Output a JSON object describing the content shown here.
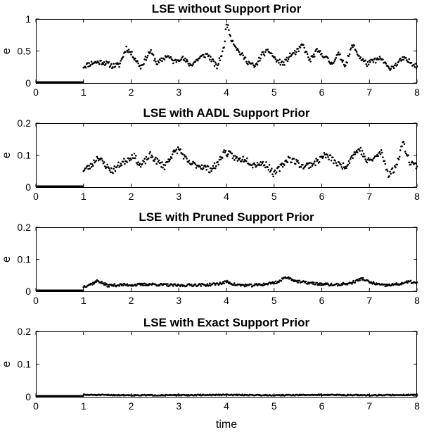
{
  "chart_data": [
    {
      "type": "scatter",
      "title": "LSE without Support Prior",
      "ylabel": "e",
      "xlabel": "",
      "xlim": [
        0,
        8
      ],
      "ylim": [
        0,
        1
      ],
      "x_ticks": [
        "0",
        "1",
        "2",
        "3",
        "4",
        "5",
        "6",
        "7",
        "8"
      ],
      "y_ticks": [
        "0",
        "0.5",
        "1"
      ],
      "grid": false,
      "zero_segment": {
        "x_start": 0,
        "x_end": 1,
        "value": 0
      },
      "anchors": [
        [
          1.0,
          0.26
        ],
        [
          1.2,
          0.32
        ],
        [
          1.4,
          0.33
        ],
        [
          1.6,
          0.27
        ],
        [
          1.75,
          0.28
        ],
        [
          1.9,
          0.55
        ],
        [
          2.05,
          0.42
        ],
        [
          2.2,
          0.25
        ],
        [
          2.4,
          0.5
        ],
        [
          2.55,
          0.3
        ],
        [
          2.75,
          0.43
        ],
        [
          2.9,
          0.33
        ],
        [
          3.05,
          0.4
        ],
        [
          3.25,
          0.28
        ],
        [
          3.45,
          0.4
        ],
        [
          3.6,
          0.45
        ],
        [
          3.8,
          0.25
        ],
        [
          3.95,
          0.55
        ],
        [
          4.0,
          0.95
        ],
        [
          4.1,
          0.7
        ],
        [
          4.25,
          0.5
        ],
        [
          4.45,
          0.33
        ],
        [
          4.6,
          0.25
        ],
        [
          4.75,
          0.45
        ],
        [
          4.9,
          0.5
        ],
        [
          5.05,
          0.35
        ],
        [
          5.2,
          0.3
        ],
        [
          5.35,
          0.44
        ],
        [
          5.5,
          0.5
        ],
        [
          5.6,
          0.6
        ],
        [
          5.75,
          0.35
        ],
        [
          5.9,
          0.5
        ],
        [
          6.05,
          0.43
        ],
        [
          6.2,
          0.3
        ],
        [
          6.35,
          0.45
        ],
        [
          6.5,
          0.28
        ],
        [
          6.65,
          0.6
        ],
        [
          6.8,
          0.4
        ],
        [
          6.95,
          0.3
        ],
        [
          7.1,
          0.35
        ],
        [
          7.25,
          0.38
        ],
        [
          7.4,
          0.23
        ],
        [
          7.55,
          0.28
        ],
        [
          7.7,
          0.38
        ],
        [
          7.85,
          0.33
        ],
        [
          8.0,
          0.27
        ]
      ],
      "noise": 0.04,
      "points_per_unit": 60,
      "seed": 11
    },
    {
      "type": "scatter",
      "title": "LSE with AADL Support Prior",
      "ylabel": "e",
      "xlabel": "",
      "xlim": [
        0,
        8
      ],
      "ylim": [
        0,
        0.2
      ],
      "x_ticks": [
        "0",
        "1",
        "2",
        "3",
        "4",
        "5",
        "6",
        "7",
        "8"
      ],
      "y_ticks": [
        "0",
        "0.1",
        "0.2"
      ],
      "grid": false,
      "zero_segment": {
        "x_start": 0,
        "x_end": 1,
        "value": 0
      },
      "anchors": [
        [
          1.0,
          0.055
        ],
        [
          1.15,
          0.065
        ],
        [
          1.3,
          0.095
        ],
        [
          1.45,
          0.07
        ],
        [
          1.6,
          0.05
        ],
        [
          1.75,
          0.07
        ],
        [
          1.9,
          0.085
        ],
        [
          2.05,
          0.1
        ],
        [
          2.2,
          0.065
        ],
        [
          2.4,
          0.1
        ],
        [
          2.55,
          0.08
        ],
        [
          2.7,
          0.065
        ],
        [
          2.85,
          0.1
        ],
        [
          3.0,
          0.12
        ],
        [
          3.2,
          0.075
        ],
        [
          3.35,
          0.07
        ],
        [
          3.5,
          0.065
        ],
        [
          3.65,
          0.055
        ],
        [
          3.8,
          0.07
        ],
        [
          3.95,
          0.11
        ],
        [
          4.1,
          0.1
        ],
        [
          4.25,
          0.085
        ],
        [
          4.4,
          0.09
        ],
        [
          4.55,
          0.07
        ],
        [
          4.7,
          0.075
        ],
        [
          4.85,
          0.07
        ],
        [
          5.0,
          0.04
        ],
        [
          5.15,
          0.065
        ],
        [
          5.3,
          0.09
        ],
        [
          5.45,
          0.08
        ],
        [
          5.6,
          0.065
        ],
        [
          5.75,
          0.07
        ],
        [
          5.9,
          0.08
        ],
        [
          6.05,
          0.1
        ],
        [
          6.2,
          0.09
        ],
        [
          6.35,
          0.07
        ],
        [
          6.5,
          0.065
        ],
        [
          6.65,
          0.1
        ],
        [
          6.8,
          0.12
        ],
        [
          6.95,
          0.08
        ],
        [
          7.1,
          0.09
        ],
        [
          7.25,
          0.11
        ],
        [
          7.4,
          0.04
        ],
        [
          7.55,
          0.06
        ],
        [
          7.7,
          0.14
        ],
        [
          7.85,
          0.08
        ],
        [
          8.0,
          0.065
        ]
      ],
      "noise": 0.01,
      "points_per_unit": 60,
      "seed": 23
    },
    {
      "type": "scatter",
      "title": "LSE with Pruned Support Prior",
      "ylabel": "e",
      "xlabel": "",
      "xlim": [
        0,
        8
      ],
      "ylim": [
        0,
        0.2
      ],
      "x_ticks": [
        "0",
        "1",
        "2",
        "3",
        "4",
        "5",
        "6",
        "7",
        "8"
      ],
      "y_ticks": [
        "0",
        "0.1",
        "0.2"
      ],
      "grid": false,
      "zero_segment": {
        "x_start": 0,
        "x_end": 1,
        "value": 0
      },
      "anchors": [
        [
          1.0,
          0.015
        ],
        [
          1.2,
          0.025
        ],
        [
          1.3,
          0.033
        ],
        [
          1.5,
          0.018
        ],
        [
          1.8,
          0.02
        ],
        [
          2.1,
          0.02
        ],
        [
          2.4,
          0.022
        ],
        [
          2.7,
          0.02
        ],
        [
          3.0,
          0.018
        ],
        [
          3.3,
          0.02
        ],
        [
          3.6,
          0.02
        ],
        [
          3.9,
          0.025
        ],
        [
          4.0,
          0.03
        ],
        [
          4.2,
          0.02
        ],
        [
          4.5,
          0.018
        ],
        [
          4.8,
          0.022
        ],
        [
          5.1,
          0.03
        ],
        [
          5.25,
          0.045
        ],
        [
          5.5,
          0.03
        ],
        [
          5.8,
          0.025
        ],
        [
          6.0,
          0.022
        ],
        [
          6.3,
          0.02
        ],
        [
          6.6,
          0.025
        ],
        [
          6.85,
          0.04
        ],
        [
          7.0,
          0.028
        ],
        [
          7.3,
          0.018
        ],
        [
          7.6,
          0.022
        ],
        [
          7.85,
          0.03
        ],
        [
          8.0,
          0.025
        ]
      ],
      "noise": 0.004,
      "points_per_unit": 60,
      "seed": 37
    },
    {
      "type": "scatter",
      "title": "LSE with Exact Support Prior",
      "ylabel": "e",
      "xlabel": "time",
      "xlim": [
        0,
        8
      ],
      "ylim": [
        0,
        0.2
      ],
      "x_ticks": [
        "0",
        "1",
        "2",
        "3",
        "4",
        "5",
        "6",
        "7",
        "8"
      ],
      "y_ticks": [
        "0",
        "0.1",
        "0.2"
      ],
      "grid": false,
      "zero_segment": {
        "x_start": 0,
        "x_end": 1,
        "value": 0
      },
      "anchors": [
        [
          1.0,
          0.006
        ],
        [
          2.0,
          0.005
        ],
        [
          3.0,
          0.005
        ],
        [
          4.0,
          0.006
        ],
        [
          5.0,
          0.005
        ],
        [
          6.0,
          0.006
        ],
        [
          7.0,
          0.005
        ],
        [
          8.0,
          0.006
        ]
      ],
      "noise": 0.0015,
      "points_per_unit": 60,
      "seed": 51
    }
  ]
}
